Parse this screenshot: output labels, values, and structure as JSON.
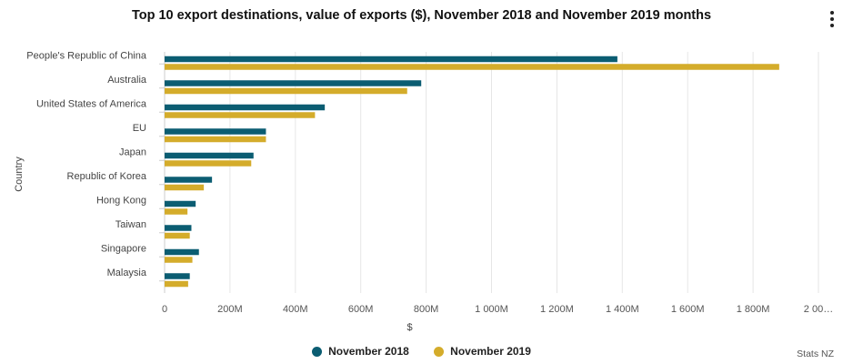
{
  "title": "Top 10 export destinations, value of exports ($), November 2018 and November 2019 months",
  "menu_icon": "context-menu-icon",
  "credit": "Stats NZ",
  "colors": {
    "series1": "#0b5d72",
    "series2": "#d4ac2b",
    "grid": "#e6e6e6"
  },
  "chart_data": {
    "type": "bar",
    "orientation": "horizontal",
    "title": "Top 10 export destinations, value of exports ($), November 2018 and November 2019 months",
    "xlabel": "$",
    "ylabel": "Country",
    "xlim": [
      0,
      2000000000
    ],
    "xticks": [
      0,
      200000000,
      400000000,
      600000000,
      800000000,
      1000000000,
      1200000000,
      1400000000,
      1600000000,
      1800000000,
      2000000000
    ],
    "xtick_labels": [
      "0",
      "200M",
      "400M",
      "600M",
      "800M",
      "1 000M",
      "1 200M",
      "1 400M",
      "1 600M",
      "1 800M",
      "2 00…"
    ],
    "categories": [
      "People's Republic of China",
      "Australia",
      "United States of America",
      "EU",
      "Japan",
      "Republic of Korea",
      "Hong Kong",
      "Taiwan",
      "Singapore",
      "Malaysia"
    ],
    "series": [
      {
        "name": "November 2018",
        "values": [
          1385000000,
          785000000,
          490000000,
          310000000,
          272000000,
          145000000,
          95000000,
          82000000,
          105000000,
          77000000
        ]
      },
      {
        "name": "November 2019",
        "values": [
          1880000000,
          742000000,
          460000000,
          310000000,
          265000000,
          120000000,
          70000000,
          77000000,
          85000000,
          72000000
        ]
      }
    ],
    "legend": "bottom-center",
    "grid": true
  }
}
